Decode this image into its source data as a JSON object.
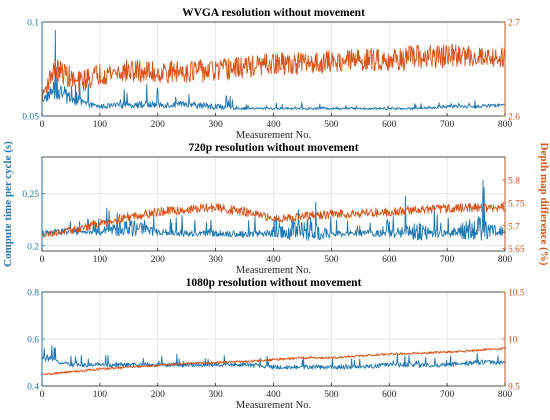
{
  "chart_data": {
    "panels": [
      {
        "type": "line",
        "title": "WVGA resolution without movement",
        "xlabel": "Measurement No.",
        "xlim": [
          0,
          800
        ],
        "xticks": [
          "0",
          "100",
          "200",
          "300",
          "400",
          "500",
          "600",
          "700",
          "800"
        ],
        "left_ylim": [
          0.05,
          0.1
        ],
        "left_yticks": [
          "0.05",
          "0.1"
        ],
        "right_ylim": [
          2.6,
          2.7
        ],
        "right_yticks": [
          "2.6",
          "2.7"
        ],
        "grid": true,
        "series": [
          {
            "axis": "left",
            "color": "#1f77b4",
            "x": [
              0,
              20,
              40,
              60,
              80,
              100,
              150,
              200,
              250,
              300,
              350,
              400,
              450,
              500,
              550,
              600,
              650,
              700,
              750,
              800
            ],
            "values": [
              0.058,
              0.064,
              0.061,
              0.058,
              0.056,
              0.055,
              0.056,
              0.056,
              0.056,
              0.055,
              0.054,
              0.054,
              0.054,
              0.054,
              0.054,
              0.054,
              0.054,
              0.055,
              0.055,
              0.056
            ],
            "noise": [
              0.002,
              0.009,
              0.008,
              0.006,
              0.003,
              0.002,
              0.003,
              0.003,
              0.003,
              0.003,
              0.001,
              0.001,
              0.001,
              0.001,
              0.001,
              0.001,
              0.001,
              0.0015,
              0.0015,
              0.0015
            ]
          },
          {
            "axis": "right",
            "color": "#d95319",
            "x": [
              0,
              20,
              40,
              60,
              80,
              100,
              150,
              200,
              250,
              300,
              350,
              400,
              450,
              500,
              550,
              600,
              650,
              700,
              750,
              800
            ],
            "values": [
              2.62,
              2.65,
              2.645,
              2.635,
              2.64,
              2.645,
              2.648,
              2.646,
              2.648,
              2.648,
              2.652,
              2.655,
              2.656,
              2.658,
              2.66,
              2.66,
              2.662,
              2.664,
              2.664,
              2.662
            ],
            "noise": [
              0.005,
              0.012,
              0.012,
              0.012,
              0.012,
              0.012,
              0.012,
              0.012,
              0.012,
              0.012,
              0.012,
              0.012,
              0.012,
              0.012,
              0.012,
              0.012,
              0.014,
              0.012,
              0.012,
              0.01
            ]
          }
        ]
      },
      {
        "type": "line",
        "title": "720p resolution without movement",
        "xlabel": "Measurement No.",
        "xlim": [
          0,
          800
        ],
        "xticks": [
          "0",
          "100",
          "200",
          "300",
          "400",
          "500",
          "600",
          "700",
          "800"
        ],
        "left_ylim": [
          0.195,
          0.285
        ],
        "left_yticks": [
          "0.2",
          "0.25"
        ],
        "right_ylim": [
          5.645,
          5.85
        ],
        "right_yticks": [
          "5.65",
          "5.7",
          "5.75",
          "5.8"
        ],
        "grid": true,
        "series": [
          {
            "axis": "left",
            "color": "#1f77b4",
            "x": [
              0,
              50,
              100,
              150,
              200,
              250,
              300,
              350,
              400,
              450,
              500,
              550,
              600,
              650,
              700,
              750,
              800
            ],
            "values": [
              0.212,
              0.214,
              0.213,
              0.218,
              0.213,
              0.212,
              0.212,
              0.211,
              0.212,
              0.215,
              0.211,
              0.212,
              0.212,
              0.214,
              0.212,
              0.216,
              0.214
            ],
            "noise": [
              0.004,
              0.006,
              0.005,
              0.015,
              0.005,
              0.005,
              0.005,
              0.005,
              0.006,
              0.02,
              0.005,
              0.005,
              0.006,
              0.015,
              0.005,
              0.02,
              0.006
            ]
          },
          {
            "axis": "right",
            "color": "#d95319",
            "x": [
              0,
              50,
              100,
              150,
              200,
              250,
              300,
              350,
              400,
              450,
              500,
              550,
              600,
              650,
              700,
              750,
              800
            ],
            "values": [
              5.68,
              5.69,
              5.705,
              5.72,
              5.73,
              5.735,
              5.74,
              5.73,
              5.715,
              5.72,
              5.725,
              5.728,
              5.73,
              5.735,
              5.738,
              5.74,
              5.738
            ],
            "noise": [
              0.006,
              0.008,
              0.008,
              0.01,
              0.01,
              0.01,
              0.01,
              0.01,
              0.008,
              0.01,
              0.01,
              0.01,
              0.01,
              0.01,
              0.01,
              0.01,
              0.01
            ]
          }
        ]
      },
      {
        "type": "line",
        "title": "1080p resolution without movement",
        "xlabel": "Measurement No.",
        "xlim": [
          0,
          800
        ],
        "xticks": [
          "0",
          "100",
          "200",
          "300",
          "400",
          "500",
          "600",
          "700",
          "800"
        ],
        "left_ylim": [
          0.4,
          0.8
        ],
        "left_yticks": [
          "0.4",
          "0.6",
          "0.8"
        ],
        "right_ylim": [
          9.5,
          10.5
        ],
        "right_yticks": [
          "9.5",
          "10",
          "10.5"
        ],
        "grid": true,
        "series": [
          {
            "axis": "left",
            "color": "#1f77b4",
            "x": [
              0,
              50,
              100,
              150,
              200,
              250,
              300,
              350,
              400,
              450,
              500,
              550,
              600,
              650,
              700,
              750,
              800
            ],
            "values": [
              0.52,
              0.49,
              0.49,
              0.49,
              0.49,
              0.49,
              0.49,
              0.49,
              0.48,
              0.48,
              0.48,
              0.48,
              0.49,
              0.49,
              0.49,
              0.5,
              0.5
            ],
            "noise": [
              0.02,
              0.015,
              0.015,
              0.015,
              0.015,
              0.015,
              0.015,
              0.015,
              0.015,
              0.015,
              0.015,
              0.015,
              0.015,
              0.02,
              0.015,
              0.02,
              0.015
            ]
          },
          {
            "axis": "right",
            "color": "#d95319",
            "x": [
              0,
              50,
              100,
              150,
              200,
              250,
              300,
              350,
              400,
              450,
              500,
              550,
              600,
              650,
              700,
              750,
              800
            ],
            "values": [
              9.62,
              9.65,
              9.68,
              9.7,
              9.72,
              9.74,
              9.75,
              9.76,
              9.78,
              9.8,
              9.8,
              9.82,
              9.84,
              9.85,
              9.86,
              9.88,
              9.9
            ],
            "noise": [
              0.012,
              0.012,
              0.012,
              0.012,
              0.012,
              0.012,
              0.012,
              0.012,
              0.012,
              0.012,
              0.012,
              0.012,
              0.012,
              0.012,
              0.012,
              0.012,
              0.012
            ]
          }
        ]
      }
    ],
    "left_ylabel": "Compute time per cycle (s)",
    "right_ylabel": "Depth map difference (%)",
    "left_axis_color": "#1f77b4",
    "right_axis_color": "#d95319"
  }
}
